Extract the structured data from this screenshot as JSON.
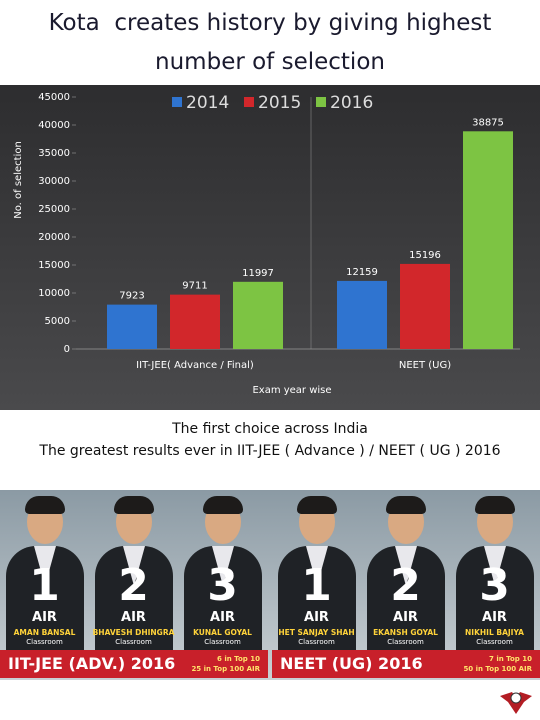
{
  "chart_data": {
    "type": "bar",
    "title": "Kota  creates history by giving highest number of selection",
    "y_label": "No. of selection",
    "x_label": "Exam year  wise",
    "categories": [
      "IIT-JEE( Advance / Final)",
      "NEET (UG)"
    ],
    "series": [
      {
        "name": "2014",
        "color": "#2f74d0",
        "values": [
          7923,
          12159
        ]
      },
      {
        "name": "2015",
        "color": "#d2272b",
        "values": [
          9711,
          15196
        ]
      },
      {
        "name": "2016",
        "color": "#7dc443",
        "values": [
          11997,
          38875
        ]
      }
    ],
    "ylim": [
      0,
      45000
    ],
    "yticks": [
      0,
      5000,
      10000,
      15000,
      20000,
      25000,
      30000,
      35000,
      40000,
      45000
    ],
    "legend": "top",
    "grid": false
  },
  "tagline": [
    "The first choice across India",
    "The greatest results ever in IIT-JEE ( Advance ) / NEET ( UG ) 2016"
  ],
  "banner": {
    "air": "AIR",
    "mode": "Classroom",
    "sections": [
      {
        "exam": "IIT-JEE (ADV.) 2016",
        "stats": [
          "6 in Top 10",
          "25 in Top 100 AIR"
        ],
        "toppers": [
          {
            "rank": 1,
            "name": "AMAN BANSAL"
          },
          {
            "rank": 2,
            "name": "BHAVESH DHINGRA"
          },
          {
            "rank": 3,
            "name": "KUNAL GOYAL"
          }
        ]
      },
      {
        "exam": "NEET (UG) 2016",
        "stats": [
          "7 in Top 10",
          "50 in Top 100 AIR"
        ],
        "toppers": [
          {
            "rank": 1,
            "name": "HET SANJAY SHAH"
          },
          {
            "rank": 2,
            "name": "EKANSH GOYAL"
          },
          {
            "rank": 3,
            "name": "NIKHIL BAJIYA"
          }
        ]
      }
    ]
  }
}
